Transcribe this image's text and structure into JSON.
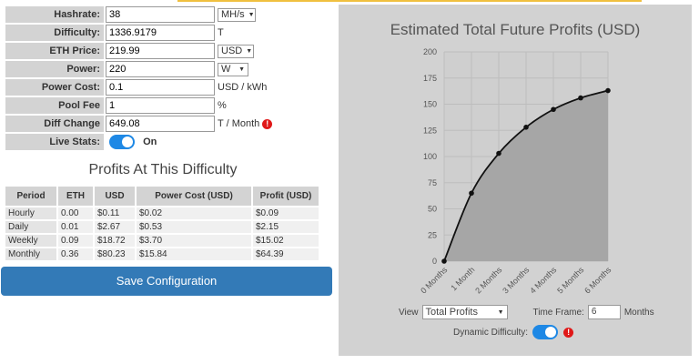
{
  "form": {
    "hashrate": {
      "label": "Hashrate:",
      "value": "38",
      "unit": "MH/s"
    },
    "difficulty": {
      "label": "Difficulty:",
      "value": "1336.9179",
      "unit": "T"
    },
    "eth_price": {
      "label": "ETH Price:",
      "value": "219.99",
      "unit": "USD"
    },
    "power": {
      "label": "Power:",
      "value": "220",
      "unit": "W"
    },
    "power_cost": {
      "label": "Power Cost:",
      "value": "0.1",
      "unit": "USD / kWh"
    },
    "pool_fee": {
      "label": "Pool Fee",
      "value": "1",
      "unit": "%"
    },
    "diff_change": {
      "label": "Diff Change",
      "value": "649.08",
      "unit": "T / Month"
    },
    "live_stats": {
      "label": "Live Stats:",
      "state": "On"
    }
  },
  "profits": {
    "title": "Profits At This Difficulty",
    "headers": [
      "Period",
      "ETH",
      "USD",
      "Power Cost (USD)",
      "Profit (USD)"
    ],
    "rows": [
      [
        "Hourly",
        "0.00",
        "$0.11",
        "$0.02",
        "$0.09"
      ],
      [
        "Daily",
        "0.01",
        "$2.67",
        "$0.53",
        "$2.15"
      ],
      [
        "Weekly",
        "0.09",
        "$18.72",
        "$3.70",
        "$15.02"
      ],
      [
        "Monthly",
        "0.36",
        "$80.23",
        "$15.84",
        "$64.39"
      ]
    ]
  },
  "save_button": "Save Configuration",
  "chart_controls": {
    "view_label": "View",
    "view_value": "Total Profits",
    "timeframe_label": "Time Frame:",
    "timeframe_value": "6",
    "timeframe_unit": "Months",
    "dynamic_label": "Dynamic Difficulty:"
  },
  "colors": {
    "accent": "#337ab7",
    "toggle": "#1e88e5",
    "warning": "#e01818",
    "area": "#a6a6a6"
  },
  "chart_data": {
    "type": "area",
    "title": "Estimated Total Future Profits (USD)",
    "categories": [
      "0 Months",
      "1 Month",
      "2 Months",
      "3 Months",
      "4 Months",
      "5 Months",
      "6 Months"
    ],
    "values": [
      0,
      65,
      103,
      128,
      145,
      156,
      163
    ],
    "yticks": [
      0,
      25,
      50,
      75,
      100,
      125,
      150,
      175,
      200
    ],
    "ylim": [
      0,
      200
    ],
    "xlabel": "",
    "ylabel": "",
    "grid": true
  }
}
